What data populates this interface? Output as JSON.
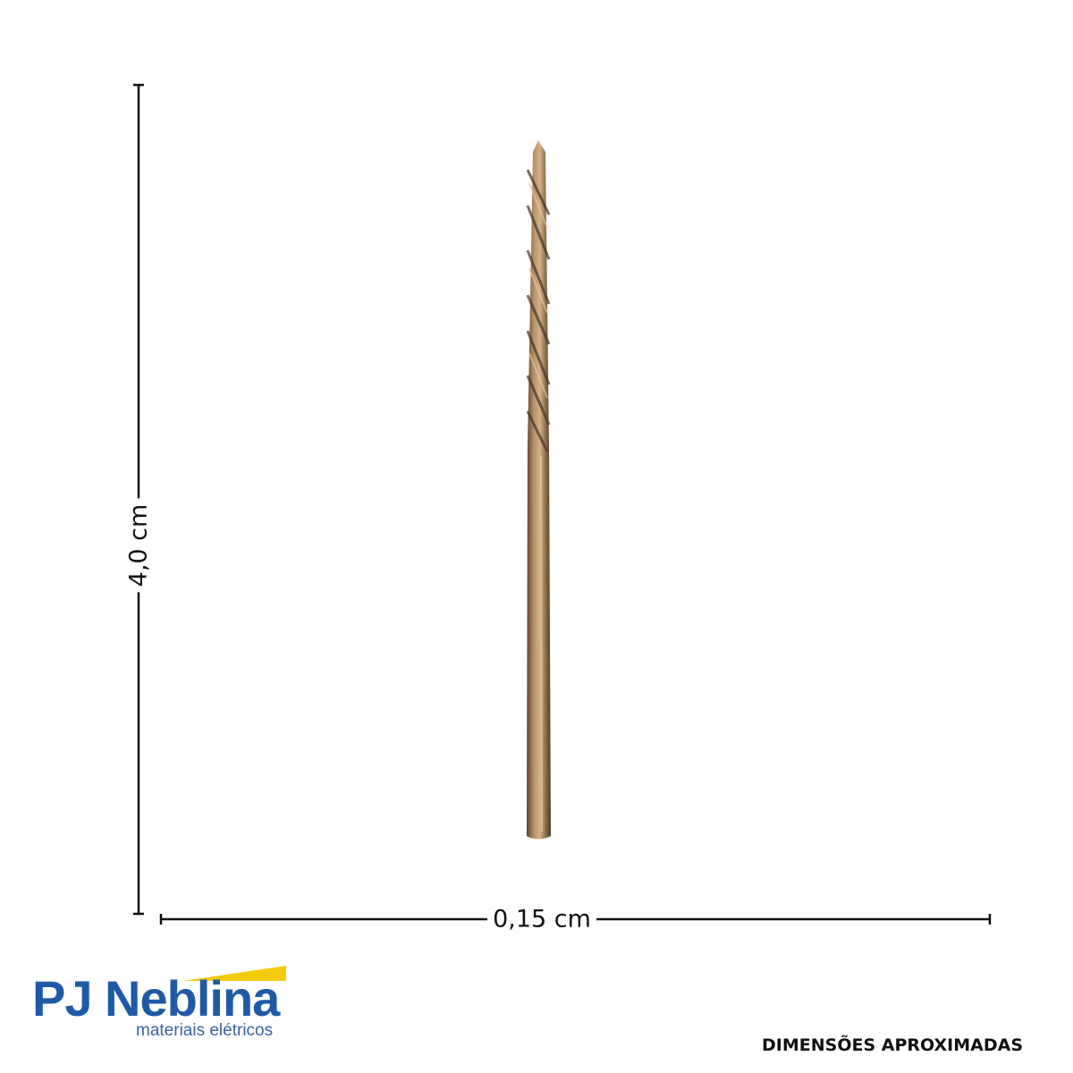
{
  "product": {
    "name": "drill bit",
    "colors": {
      "bronze": "#8a6a45",
      "bronze_light": "#c9a57a",
      "bronze_dark": "#5a4330"
    }
  },
  "dimensions": {
    "height_label": "4,0 cm",
    "width_label": "0,15 cm",
    "note": "DIMENSÕES APROXIMADAS",
    "line_color": "#111111"
  },
  "logo": {
    "title": "PJ Neblina",
    "subtitle": "materiais elétricos",
    "colors": {
      "blue": "#1f5aa6",
      "yellow": "#f2cc0c"
    }
  }
}
